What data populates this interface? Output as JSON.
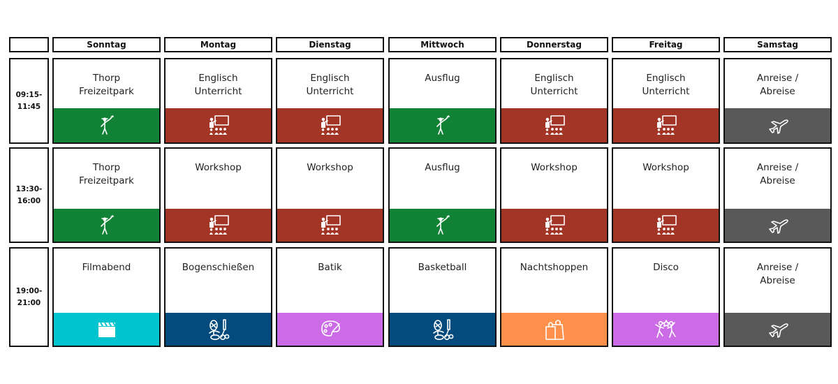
{
  "days": [
    "",
    "Sonntag",
    "Montag",
    "Dienstag",
    "Mittwoch",
    "Donnerstag",
    "Freitag",
    "Samstag"
  ],
  "colors": {
    "green": "#118136",
    "red": "#a33526",
    "gray": "#595959",
    "cyan": "#00c3d0",
    "navy": "#024b7c",
    "purple": "#cb6ce6",
    "orange": "#ff914d"
  },
  "rows": [
    {
      "time": "09:15-\n11:45",
      "cells": [
        {
          "title": "Thorp\nFreizeitpark",
          "color": "green",
          "icon": "tour-guide-icon"
        },
        {
          "title": "Englisch\nUnterricht",
          "color": "red",
          "icon": "classroom-icon"
        },
        {
          "title": "Englisch\nUnterricht",
          "color": "red",
          "icon": "classroom-icon"
        },
        {
          "title": "Ausflug",
          "color": "green",
          "icon": "tour-guide-icon"
        },
        {
          "title": "Englisch\nUnterricht",
          "color": "red",
          "icon": "classroom-icon"
        },
        {
          "title": "Englisch\nUnterricht",
          "color": "red",
          "icon": "classroom-icon"
        },
        {
          "title": "Anreise /\nAbreise",
          "color": "gray",
          "icon": "airplane-icon"
        }
      ]
    },
    {
      "time": "13:30-\n16:00",
      "cells": [
        {
          "title": "Thorp\nFreizeitpark",
          "color": "green",
          "icon": "tour-guide-icon"
        },
        {
          "title": "Workshop",
          "color": "red",
          "icon": "classroom-icon"
        },
        {
          "title": "Workshop",
          "color": "red",
          "icon": "classroom-icon"
        },
        {
          "title": "Ausflug",
          "color": "green",
          "icon": "tour-guide-icon"
        },
        {
          "title": "Workshop",
          "color": "red",
          "icon": "classroom-icon"
        },
        {
          "title": "Workshop",
          "color": "red",
          "icon": "classroom-icon"
        },
        {
          "title": "Anreise /\nAbreise",
          "color": "gray",
          "icon": "airplane-icon"
        }
      ]
    },
    {
      "time": "19:00-\n21:00",
      "cells": [
        {
          "title": "Filmabend",
          "color": "cyan",
          "icon": "clapperboard-icon"
        },
        {
          "title": "Bogenschießen",
          "color": "navy",
          "icon": "sports-equipment-icon"
        },
        {
          "title": "Batik",
          "color": "purple",
          "icon": "paint-palette-icon"
        },
        {
          "title": "Basketball",
          "color": "navy",
          "icon": "sports-equipment-icon"
        },
        {
          "title": "Nachtshoppen",
          "color": "orange",
          "icon": "shopping-bags-icon"
        },
        {
          "title": "Disco",
          "color": "purple",
          "icon": "dancing-people-icon"
        },
        {
          "title": "Anreise /\nAbreise",
          "color": "gray",
          "icon": "airplane-icon"
        }
      ]
    }
  ]
}
